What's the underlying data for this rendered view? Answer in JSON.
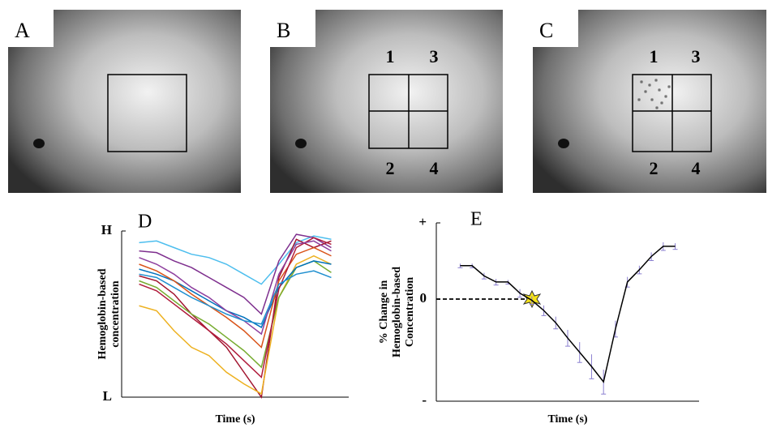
{
  "panels": {
    "a": {
      "label": "A"
    },
    "b": {
      "label": "B",
      "regions": [
        "1",
        "2",
        "3",
        "4"
      ]
    },
    "c": {
      "label": "C",
      "regions": [
        "1",
        "2",
        "3",
        "4"
      ]
    }
  },
  "chart_data": [
    {
      "type": "line",
      "label": "D",
      "ylabel": [
        "Hemoglobin-based",
        "concentration"
      ],
      "xlabel": "Time (s)",
      "x": [
        0,
        1,
        2,
        3,
        4,
        5,
        6,
        7,
        8,
        9,
        10,
        11
      ],
      "xlim": [
        -1,
        12
      ],
      "ylim": [
        0,
        1
      ],
      "yticks": [
        {
          "value": 1,
          "label": "H"
        },
        {
          "value": 0,
          "label": "L"
        }
      ],
      "series": [
        {
          "color": "#4dbeee",
          "values": [
            0.93,
            0.94,
            0.9,
            0.86,
            0.84,
            0.8,
            0.74,
            0.68,
            0.8,
            0.93,
            0.97,
            0.95
          ]
        },
        {
          "color": "#7e2f8e",
          "values": [
            0.88,
            0.87,
            0.82,
            0.78,
            0.72,
            0.66,
            0.6,
            0.5,
            0.82,
            0.98,
            0.96,
            0.9
          ]
        },
        {
          "color": "#a2142f",
          "values": [
            0.73,
            0.7,
            0.62,
            0.5,
            0.4,
            0.3,
            0.15,
            0.0,
            0.72,
            0.95,
            0.9,
            0.94
          ]
        },
        {
          "color": "#edb120",
          "values": [
            0.55,
            0.52,
            0.4,
            0.3,
            0.25,
            0.15,
            0.08,
            0.02,
            0.6,
            0.8,
            0.85,
            0.8
          ]
        },
        {
          "color": "#77ac30",
          "values": [
            0.7,
            0.66,
            0.58,
            0.5,
            0.44,
            0.36,
            0.28,
            0.18,
            0.6,
            0.78,
            0.82,
            0.75
          ]
        },
        {
          "color": "#0072bd",
          "values": [
            0.77,
            0.74,
            0.7,
            0.64,
            0.58,
            0.52,
            0.48,
            0.42,
            0.66,
            0.78,
            0.82,
            0.8
          ]
        },
        {
          "color": "#d95319",
          "values": [
            0.8,
            0.76,
            0.7,
            0.62,
            0.55,
            0.48,
            0.4,
            0.3,
            0.7,
            0.86,
            0.9,
            0.85
          ]
        },
        {
          "color": "#b01c3c",
          "values": [
            0.68,
            0.64,
            0.56,
            0.48,
            0.4,
            0.32,
            0.22,
            0.12,
            0.65,
            0.9,
            0.96,
            0.92
          ]
        },
        {
          "color": "#8e3f9e",
          "values": [
            0.84,
            0.8,
            0.74,
            0.66,
            0.6,
            0.52,
            0.46,
            0.38,
            0.74,
            0.92,
            0.94,
            0.88
          ]
        },
        {
          "color": "#1f8fcf",
          "values": [
            0.74,
            0.72,
            0.66,
            0.6,
            0.55,
            0.5,
            0.46,
            0.44,
            0.68,
            0.74,
            0.76,
            0.72
          ]
        }
      ]
    },
    {
      "type": "line",
      "label": "E",
      "ylabel": [
        "% Change in",
        "Hemoglobin-based",
        "Concentration"
      ],
      "xlabel": "Time (s)",
      "x": [
        0,
        1,
        2,
        3,
        4,
        5,
        6,
        7,
        8,
        9,
        10,
        11,
        12,
        13,
        14,
        15,
        16,
        17,
        18
      ],
      "xlim": [
        -2,
        20
      ],
      "ylim": [
        -1,
        0.75
      ],
      "yticks": [
        {
          "value": 0.75,
          "label": "+"
        },
        {
          "value": 0,
          "label": "0"
        },
        {
          "value": -1,
          "label": "-"
        }
      ],
      "series": [
        {
          "color": "#000000",
          "error_color": "#8a7fd0",
          "values": [
            0.33,
            0.33,
            0.23,
            0.17,
            0.17,
            0.06,
            -0.01,
            -0.11,
            -0.23,
            -0.38,
            -0.52,
            -0.66,
            -0.81,
            -0.29,
            0.17,
            0.29,
            0.42,
            0.52,
            0.52
          ],
          "errors": [
            0.02,
            0.02,
            0.03,
            0.03,
            0.02,
            0.04,
            0.04,
            0.05,
            0.06,
            0.08,
            0.1,
            0.12,
            0.12,
            0.08,
            0.05,
            0.04,
            0.04,
            0.04,
            0.03
          ]
        }
      ]
    }
  ]
}
